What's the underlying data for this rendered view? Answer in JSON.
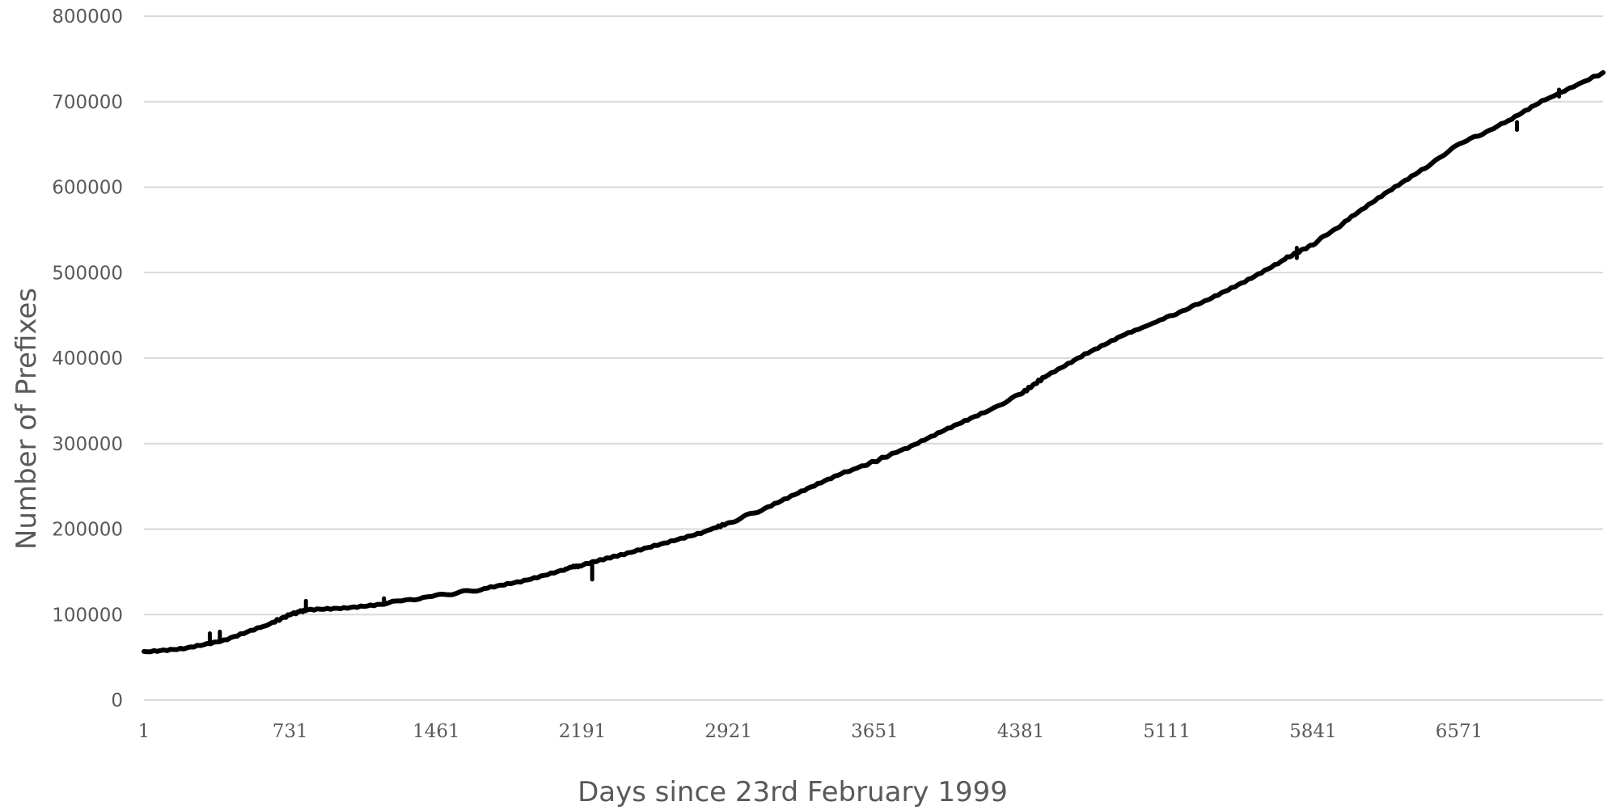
{
  "chart_data": {
    "type": "line",
    "title": "",
    "xlabel": "Days since 23rd February 1999",
    "ylabel": "Number of Prefixes",
    "xlim": [
      1,
      7290
    ],
    "ylim": [
      0,
      800000
    ],
    "grid": true,
    "legend": "none",
    "x_ticks": [
      "1",
      "731",
      "1461",
      "2191",
      "2921",
      "3651",
      "4381",
      "5111",
      "5841",
      "6571"
    ],
    "y_ticks": [
      "0",
      "100000",
      "200000",
      "300000",
      "400000",
      "500000",
      "600000",
      "700000",
      "800000"
    ],
    "series_color": "#000000",
    "x": [
      1,
      200,
      400,
      600,
      731,
      800,
      1000,
      1200,
      1461,
      1700,
      1900,
      2100,
      2191,
      2400,
      2600,
      2800,
      2921,
      3100,
      3300,
      3500,
      3651,
      3800,
      4000,
      4200,
      4381,
      4500,
      4700,
      4900,
      5111,
      5300,
      5500,
      5700,
      5841,
      6000,
      6200,
      6400,
      6571,
      6800,
      7000,
      7290
    ],
    "values": [
      56000,
      61000,
      70000,
      86000,
      100000,
      105000,
      108000,
      113000,
      122000,
      130000,
      140000,
      153000,
      158000,
      170000,
      183000,
      197000,
      207000,
      224000,
      245000,
      266000,
      279000,
      294000,
      316000,
      336000,
      358000,
      378000,
      405000,
      428000,
      448000,
      466000,
      490000,
      516000,
      533000,
      559000,
      592000,
      623000,
      650000,
      675000,
      702000,
      734000
    ],
    "spikes": [
      {
        "x": 330,
        "from": 70000,
        "to": 78000
      },
      {
        "x": 380,
        "from": 72000,
        "to": 80000
      },
      {
        "x": 810,
        "from": 104000,
        "to": 116000
      },
      {
        "x": 1200,
        "from": 113000,
        "to": 119000
      },
      {
        "x": 2240,
        "from": 141000,
        "to": 160000
      },
      {
        "x": 5760,
        "from": 517000,
        "to": 529000
      },
      {
        "x": 6860,
        "from": 667000,
        "to": 676000
      },
      {
        "x": 7070,
        "from": 706000,
        "to": 714000
      }
    ]
  }
}
